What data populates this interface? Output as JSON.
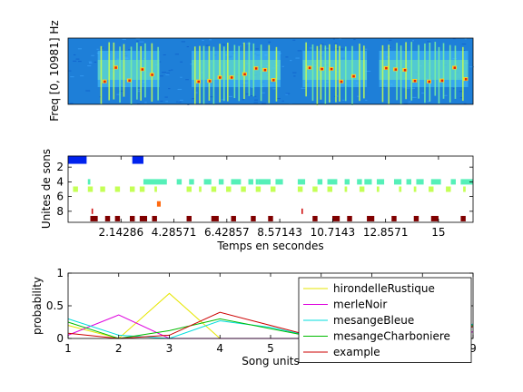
{
  "chart_data": [
    {
      "type": "heatmap",
      "title": "",
      "xlabel": "",
      "ylabel": "Freq [0, 10981] Hz",
      "description_colormap": "jet",
      "background_color": "#1e7fd8",
      "bursts": [
        {
          "start": 1.2,
          "end": 3.7
        },
        {
          "start": 5.0,
          "end": 8.6
        },
        {
          "start": 9.5,
          "end": 12.1
        },
        {
          "start": 12.6,
          "end": 16.2
        }
      ]
    },
    {
      "type": "scatter",
      "title": "",
      "xlabel": "Temps en secondes",
      "ylabel": "Unites de sons",
      "xlim": [
        0,
        16.4
      ],
      "ylim": [
        0.5,
        9.5
      ],
      "yticks": [
        "2",
        "4",
        "6",
        "8"
      ],
      "xticks": [
        "2.14286",
        "4.28571",
        "6.42857",
        "8.57143",
        "10.7143",
        "12.8571",
        "15"
      ],
      "xtick_values": [
        2.14286,
        4.28571,
        6.42857,
        8.57143,
        10.7143,
        12.8571,
        15
      ],
      "rows": [
        {
          "unit": 1,
          "color": "#0022ee",
          "segments": [
            [
              0,
              0.75
            ],
            [
              2.6,
              3.05
            ]
          ]
        },
        {
          "unit": 4,
          "color": "#55f0b8",
          "segments": [
            [
              3.05,
              4.0
            ],
            [
              4.4,
              4.6
            ],
            [
              4.9,
              5.1
            ],
            [
              5.5,
              5.8
            ],
            [
              6.1,
              6.3
            ],
            [
              6.6,
              7.0
            ],
            [
              7.3,
              7.5
            ],
            [
              7.7,
              8.2
            ],
            [
              7.6,
              7.7
            ],
            [
              8.4,
              8.7
            ],
            [
              9.3,
              9.6
            ],
            [
              10.1,
              10.3
            ],
            [
              10.5,
              10.9
            ],
            [
              11.2,
              11.4
            ],
            [
              11.7,
              11.9
            ],
            [
              12.0,
              12.3
            ],
            [
              12.5,
              12.8
            ],
            [
              13.2,
              13.5
            ],
            [
              13.7,
              13.9
            ],
            [
              14.1,
              14.4
            ],
            [
              14.7,
              15.1
            ],
            [
              15.5,
              15.7
            ],
            [
              15.9,
              16.4
            ],
            [
              0.8,
              0.9
            ]
          ]
        },
        {
          "unit": 5,
          "color": "#c4ff55",
          "segments": [
            [
              0.2,
              0.4
            ],
            [
              0.8,
              1.0
            ],
            [
              1.3,
              1.5
            ],
            [
              1.9,
              2.1
            ],
            [
              2.5,
              2.7
            ],
            [
              2.9,
              3.1
            ],
            [
              3.5,
              3.6
            ],
            [
              4.8,
              5.0
            ],
            [
              5.3,
              5.4
            ],
            [
              5.8,
              6.0
            ],
            [
              6.4,
              6.6
            ],
            [
              7.0,
              7.2
            ],
            [
              7.6,
              7.8
            ],
            [
              8.2,
              8.4
            ],
            [
              9.3,
              9.5
            ],
            [
              9.9,
              10.1
            ],
            [
              10.5,
              10.7
            ],
            [
              11.2,
              11.3
            ],
            [
              11.8,
              12.0
            ],
            [
              12.5,
              12.6
            ],
            [
              13.4,
              13.5
            ],
            [
              14.0,
              14.1
            ],
            [
              14.6,
              14.8
            ],
            [
              15.3,
              15.5
            ],
            [
              16.0,
              16.1
            ]
          ]
        },
        {
          "unit": 7,
          "color": "#ff6a10",
          "segments": [
            [
              3.6,
              3.75
            ]
          ]
        },
        {
          "unit": 8,
          "color": "#d01010",
          "segments": [
            [
              0.95,
              1.0
            ],
            [
              9.45,
              9.5
            ]
          ]
        },
        {
          "unit": 9,
          "color": "#800000",
          "segments": [
            [
              0.9,
              1.2
            ],
            [
              1.5,
              1.7
            ],
            [
              1.9,
              2.1
            ],
            [
              2.5,
              2.7
            ],
            [
              2.9,
              3.2
            ],
            [
              3.4,
              3.6
            ],
            [
              4.8,
              5.0
            ],
            [
              5.8,
              6.1
            ],
            [
              6.6,
              6.8
            ],
            [
              7.4,
              7.6
            ],
            [
              8.1,
              8.3
            ],
            [
              9.9,
              10.1
            ],
            [
              10.7,
              11.0
            ],
            [
              11.3,
              11.5
            ],
            [
              12.1,
              12.4
            ],
            [
              13.1,
              13.3
            ],
            [
              14.0,
              14.2
            ],
            [
              14.7,
              15.0
            ],
            [
              15.9,
              16.1
            ]
          ]
        }
      ]
    },
    {
      "type": "line",
      "title": "",
      "xlabel": "Song units",
      "ylabel": "probability",
      "xlim": [
        1,
        9
      ],
      "ylim": [
        0,
        1
      ],
      "xticks": [
        "1",
        "2",
        "3",
        "4",
        "5",
        "6",
        "7",
        "8",
        "9"
      ],
      "yticks": [
        "0",
        "0.5",
        "1"
      ],
      "legend_position": "top-right",
      "x": [
        1,
        2,
        3,
        4,
        5,
        6,
        7,
        8,
        9
      ],
      "series": [
        {
          "name": "hirondelleRustique",
          "color": "#e6e600",
          "values": [
            0.2,
            0.0,
            0.69,
            0.0,
            0.0,
            0.0,
            0.0,
            0.0,
            0.0
          ]
        },
        {
          "name": "merleNoir",
          "color": "#dd00dd",
          "values": [
            0.05,
            0.36,
            0.0,
            0.0,
            0.0,
            0.0,
            0.0,
            0.0,
            0.1
          ]
        },
        {
          "name": "mesangeBleue",
          "color": "#00dddd",
          "values": [
            0.3,
            0.05,
            0.0,
            0.27,
            0.17,
            0.0,
            0.0,
            0.0,
            0.22
          ]
        },
        {
          "name": "mesangeCharboniere",
          "color": "#00bb00",
          "values": [
            0.25,
            0.0,
            0.12,
            0.3,
            0.15,
            0.0,
            0.0,
            0.0,
            0.2
          ]
        },
        {
          "name": "example",
          "color": "#cc0000",
          "values": [
            0.08,
            0.0,
            0.05,
            0.4,
            0.2,
            0.0,
            0.0,
            0.0,
            0.18
          ]
        }
      ]
    }
  ]
}
